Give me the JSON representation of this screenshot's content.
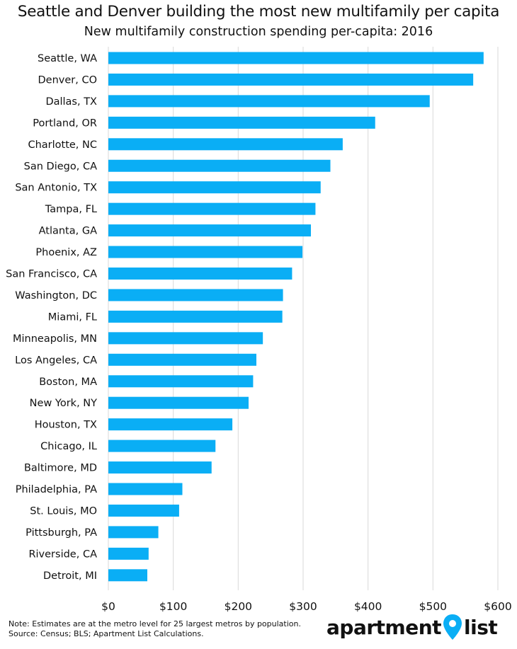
{
  "chart_data": {
    "type": "bar",
    "orientation": "horizontal",
    "title": "Seattle and Denver building the most new multifamily per capita",
    "subtitle": "New multifamily construction spending per-capita: 2016",
    "categories": [
      "Seattle, WA",
      "Denver, CO",
      "Dallas, TX",
      "Portland, OR",
      "Charlotte, NC",
      "San Diego, CA",
      "San Antonio, TX",
      "Tampa, FL",
      "Atlanta, GA",
      "Phoenix, AZ",
      "San Francisco, CA",
      "Washington, DC",
      "Miami, FL",
      "Minneapolis, MN",
      "Los Angeles, CA",
      "Boston, MA",
      "New York, NY",
      "Houston, TX",
      "Chicago, IL",
      "Baltimore, MD",
      "Philadelphia, PA",
      "St. Louis, MO",
      "Pittsburgh, PA",
      "Riverside, CA",
      "Detroit, MI"
    ],
    "values": [
      578,
      562,
      495,
      411,
      361,
      342,
      327,
      319,
      312,
      299,
      283,
      269,
      268,
      238,
      228,
      223,
      216,
      191,
      165,
      159,
      114,
      109,
      77,
      62,
      60
    ],
    "xlim": [
      0,
      600
    ],
    "xticks": [
      0,
      100,
      200,
      300,
      400,
      500,
      600
    ],
    "xtick_labels": [
      "$0",
      "$100",
      "$200",
      "$300",
      "$400",
      "$500",
      "$600"
    ],
    "grid": true,
    "bar_color": "#0AAEF5"
  },
  "footnote": {
    "line1": "Note: Estimates are at the metro level for 25 largest metros by population.",
    "line2": "Source: Census; BLS; Apartment List Calculations."
  },
  "logo": {
    "text_left": "apartment",
    "text_right": "list",
    "pin_color": "#0AAEF5"
  }
}
